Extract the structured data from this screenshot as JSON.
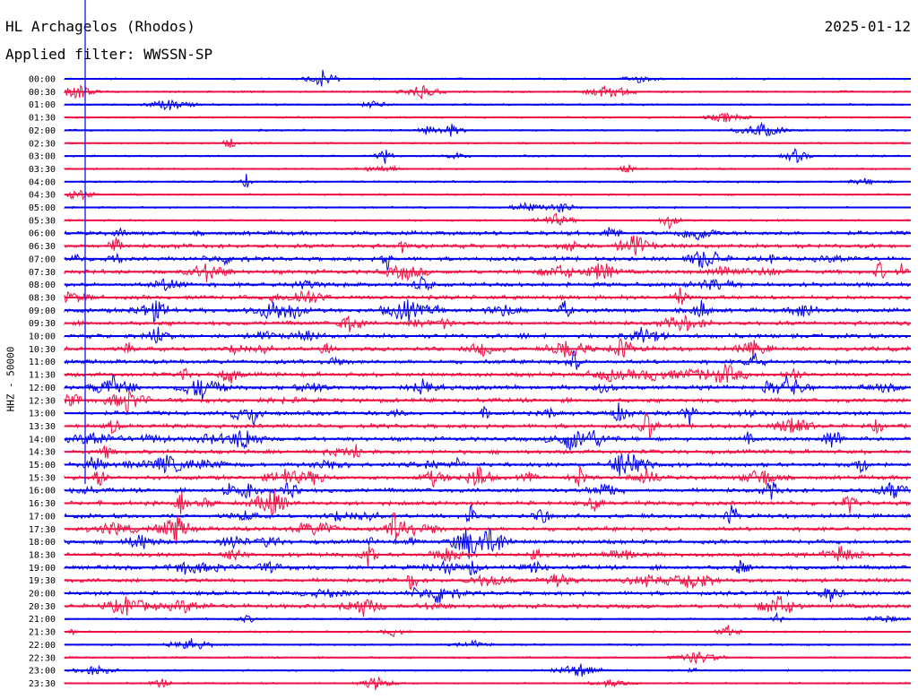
{
  "header": {
    "title": "HL Archagelos (Rhodos)",
    "filter": "Applied filter: WWSSN-SP",
    "date": "2025-01-12"
  },
  "colors": {
    "even_trace": "#0000ee",
    "odd_trace": "#ee1144",
    "text": "#000000"
  },
  "chart_data": {
    "type": "line",
    "title": "HL Archagelos (Rhodos)",
    "subtitle": "Applied filter: WWSSN-SP",
    "ylabel": "HHZ - 50000",
    "xlabel": "",
    "date": "2025-01-12",
    "row_interval_minutes": 30,
    "rows": [
      "00:00",
      "00:30",
      "01:00",
      "01:30",
      "02:00",
      "02:30",
      "03:00",
      "03:30",
      "04:00",
      "04:30",
      "05:00",
      "05:30",
      "06:00",
      "06:30",
      "07:00",
      "07:30",
      "08:00",
      "08:30",
      "09:00",
      "09:30",
      "10:00",
      "10:30",
      "11:00",
      "11:30",
      "12:00",
      "12:30",
      "13:00",
      "13:30",
      "14:00",
      "14:30",
      "15:00",
      "15:30",
      "16:00",
      "16:30",
      "17:00",
      "17:30",
      "18:00",
      "18:30",
      "19:00",
      "19:30",
      "20:00",
      "20:30",
      "21:00",
      "21:30",
      "22:00",
      "22:30",
      "23:00",
      "23:30"
    ],
    "row_colors": [
      "blue",
      "red"
    ],
    "grid": false,
    "legend": "none"
  }
}
